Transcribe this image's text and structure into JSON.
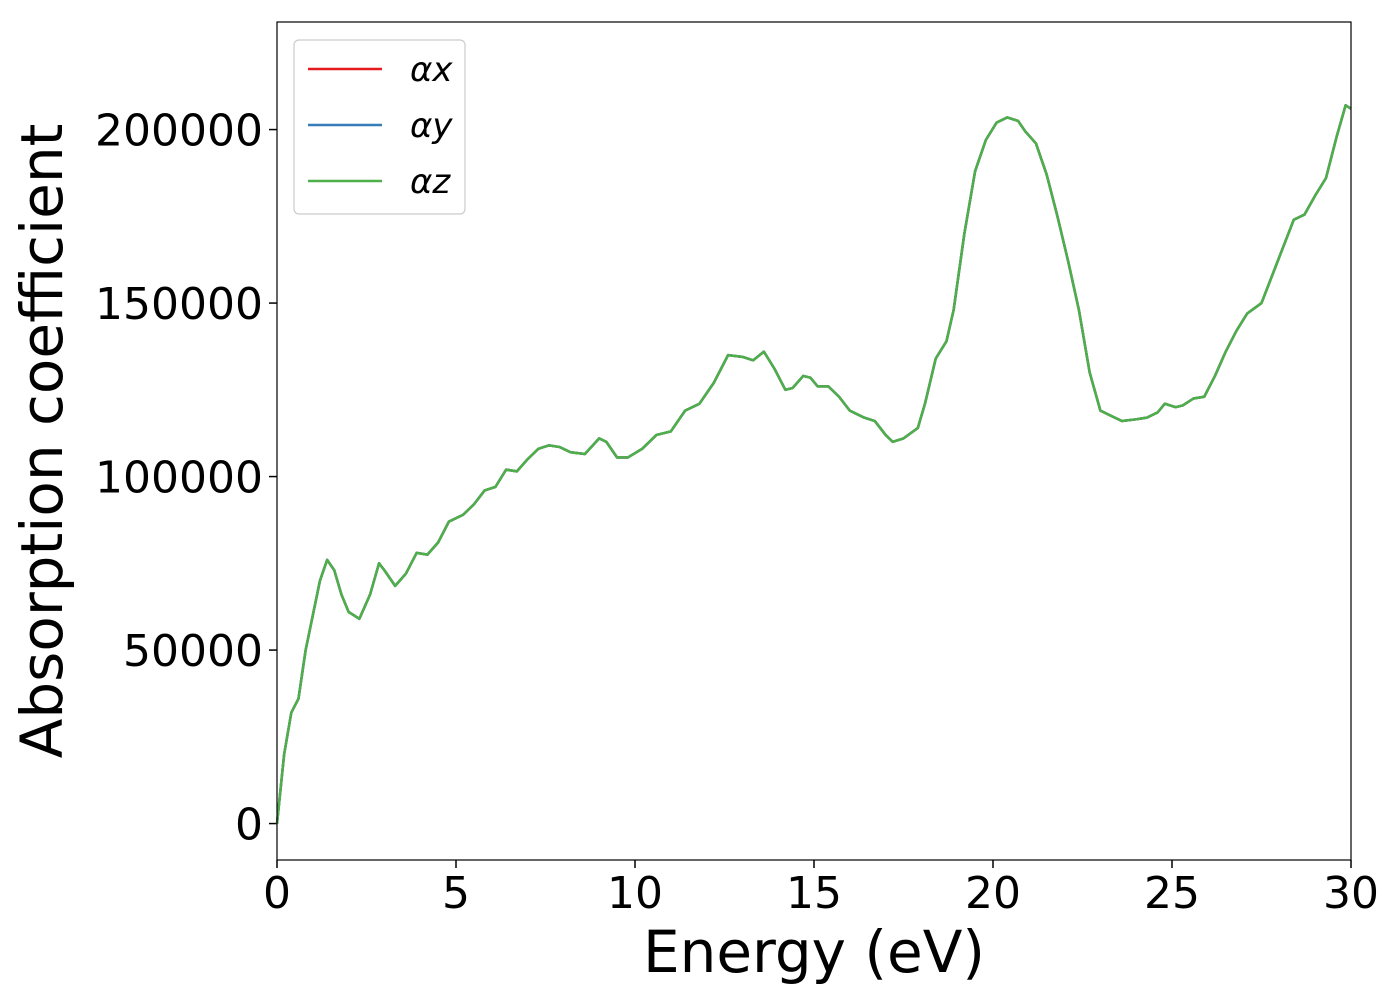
{
  "chart_data": {
    "type": "line",
    "xlabel": "Energy (eV)",
    "ylabel": "Absorption coefficient",
    "x": [
      0,
      0.2,
      0.4,
      0.6,
      0.8,
      1.0,
      1.2,
      1.4,
      1.6,
      1.8,
      2.0,
      2.3,
      2.6,
      2.85,
      3.0,
      3.3,
      3.6,
      3.9,
      4.2,
      4.5,
      4.8,
      5.2,
      5.5,
      5.8,
      6.1,
      6.4,
      6.7,
      7.0,
      7.3,
      7.6,
      7.9,
      8.2,
      8.6,
      9.0,
      9.2,
      9.5,
      9.8,
      10.2,
      10.6,
      11.0,
      11.4,
      11.8,
      12.2,
      12.6,
      13.0,
      13.3,
      13.6,
      13.9,
      14.2,
      14.4,
      14.7,
      14.9,
      15.1,
      15.4,
      15.7,
      16.0,
      16.4,
      16.7,
      17.0,
      17.2,
      17.5,
      17.9,
      18.1,
      18.4,
      18.7,
      18.9,
      19.2,
      19.5,
      19.8,
      20.1,
      20.4,
      20.7,
      20.9,
      21.2,
      21.5,
      21.8,
      22.1,
      22.4,
      22.7,
      23.0,
      23.3,
      23.6,
      24.0,
      24.3,
      24.6,
      24.8,
      25.1,
      25.3,
      25.6,
      25.9,
      26.2,
      26.5,
      26.8,
      27.1,
      27.5,
      27.8,
      28.1,
      28.4,
      28.7,
      29.0,
      29.3,
      29.6,
      29.85,
      30
    ],
    "series": [
      {
        "name": "αx",
        "color": "#e41a1c",
        "values": [
          0,
          20000,
          32000,
          36000,
          50000,
          60000,
          70000,
          76000,
          73000,
          66000,
          61000,
          59000,
          66000,
          75000,
          73000,
          68500,
          72000,
          78000,
          77500,
          81000,
          87000,
          89000,
          92000,
          96000,
          97000,
          102000,
          101500,
          105000,
          108000,
          109000,
          108500,
          107000,
          106500,
          111000,
          110000,
          105500,
          105500,
          108000,
          112000,
          113000,
          119000,
          121000,
          127000,
          135000,
          134500,
          133500,
          136000,
          131000,
          125000,
          125500,
          129000,
          128500,
          126000,
          126000,
          123000,
          119000,
          117000,
          116000,
          112000,
          110000,
          111000,
          114000,
          121000,
          134000,
          139000,
          148000,
          170000,
          188000,
          197000,
          202000,
          203500,
          202500,
          199500,
          196000,
          187000,
          175000,
          162000,
          148000,
          130000,
          119000,
          117500,
          116000,
          116500,
          117000,
          118500,
          121000,
          120000,
          120500,
          122500,
          123000,
          129000,
          136000,
          142000,
          147000,
          150000,
          158000,
          166000,
          174000,
          175500,
          181000,
          186000,
          198000,
          207000,
          206000
        ]
      },
      {
        "name": "αy",
        "color": "#377eb8",
        "values": [
          0,
          20000,
          32000,
          36000,
          50000,
          60000,
          70000,
          76000,
          73000,
          66000,
          61000,
          59000,
          66000,
          75000,
          73000,
          68500,
          72000,
          78000,
          77500,
          81000,
          87000,
          89000,
          92000,
          96000,
          97000,
          102000,
          101500,
          105000,
          108000,
          109000,
          108500,
          107000,
          106500,
          111000,
          110000,
          105500,
          105500,
          108000,
          112000,
          113000,
          119000,
          121000,
          127000,
          135000,
          134500,
          133500,
          136000,
          131000,
          125000,
          125500,
          129000,
          128500,
          126000,
          126000,
          123000,
          119000,
          117000,
          116000,
          112000,
          110000,
          111000,
          114000,
          121000,
          134000,
          139000,
          148000,
          170000,
          188000,
          197000,
          202000,
          203500,
          202500,
          199500,
          196000,
          187000,
          175000,
          162000,
          148000,
          130000,
          119000,
          117500,
          116000,
          116500,
          117000,
          118500,
          121000,
          120000,
          120500,
          122500,
          123000,
          129000,
          136000,
          142000,
          147000,
          150000,
          158000,
          166000,
          174000,
          175500,
          181000,
          186000,
          198000,
          207000,
          206000
        ]
      },
      {
        "name": "αz",
        "color": "#4daf4a",
        "values": [
          0,
          20000,
          32000,
          36000,
          50000,
          60000,
          70000,
          76000,
          73000,
          66000,
          61000,
          59000,
          66000,
          75000,
          73000,
          68500,
          72000,
          78000,
          77500,
          81000,
          87000,
          89000,
          92000,
          96000,
          97000,
          102000,
          101500,
          105000,
          108000,
          109000,
          108500,
          107000,
          106500,
          111000,
          110000,
          105500,
          105500,
          108000,
          112000,
          113000,
          119000,
          121000,
          127000,
          135000,
          134500,
          133500,
          136000,
          131000,
          125000,
          125500,
          129000,
          128500,
          126000,
          126000,
          123000,
          119000,
          117000,
          116000,
          112000,
          110000,
          111000,
          114000,
          121000,
          134000,
          139000,
          148000,
          170000,
          188000,
          197000,
          202000,
          203500,
          202500,
          199500,
          196000,
          187000,
          175000,
          162000,
          148000,
          130000,
          119000,
          117500,
          116000,
          116500,
          117000,
          118500,
          121000,
          120000,
          120500,
          122500,
          123000,
          129000,
          136000,
          142000,
          147000,
          150000,
          158000,
          166000,
          174000,
          175500,
          181000,
          186000,
          198000,
          207000,
          206000
        ]
      }
    ],
    "xlim": [
      0,
      30
    ],
    "xticks": [
      0,
      5,
      10,
      15,
      20,
      25,
      30
    ],
    "ylim": [
      -10500,
      231000
    ],
    "yticks": [
      0,
      50000,
      100000,
      150000,
      200000
    ],
    "legend": "upper left"
  }
}
